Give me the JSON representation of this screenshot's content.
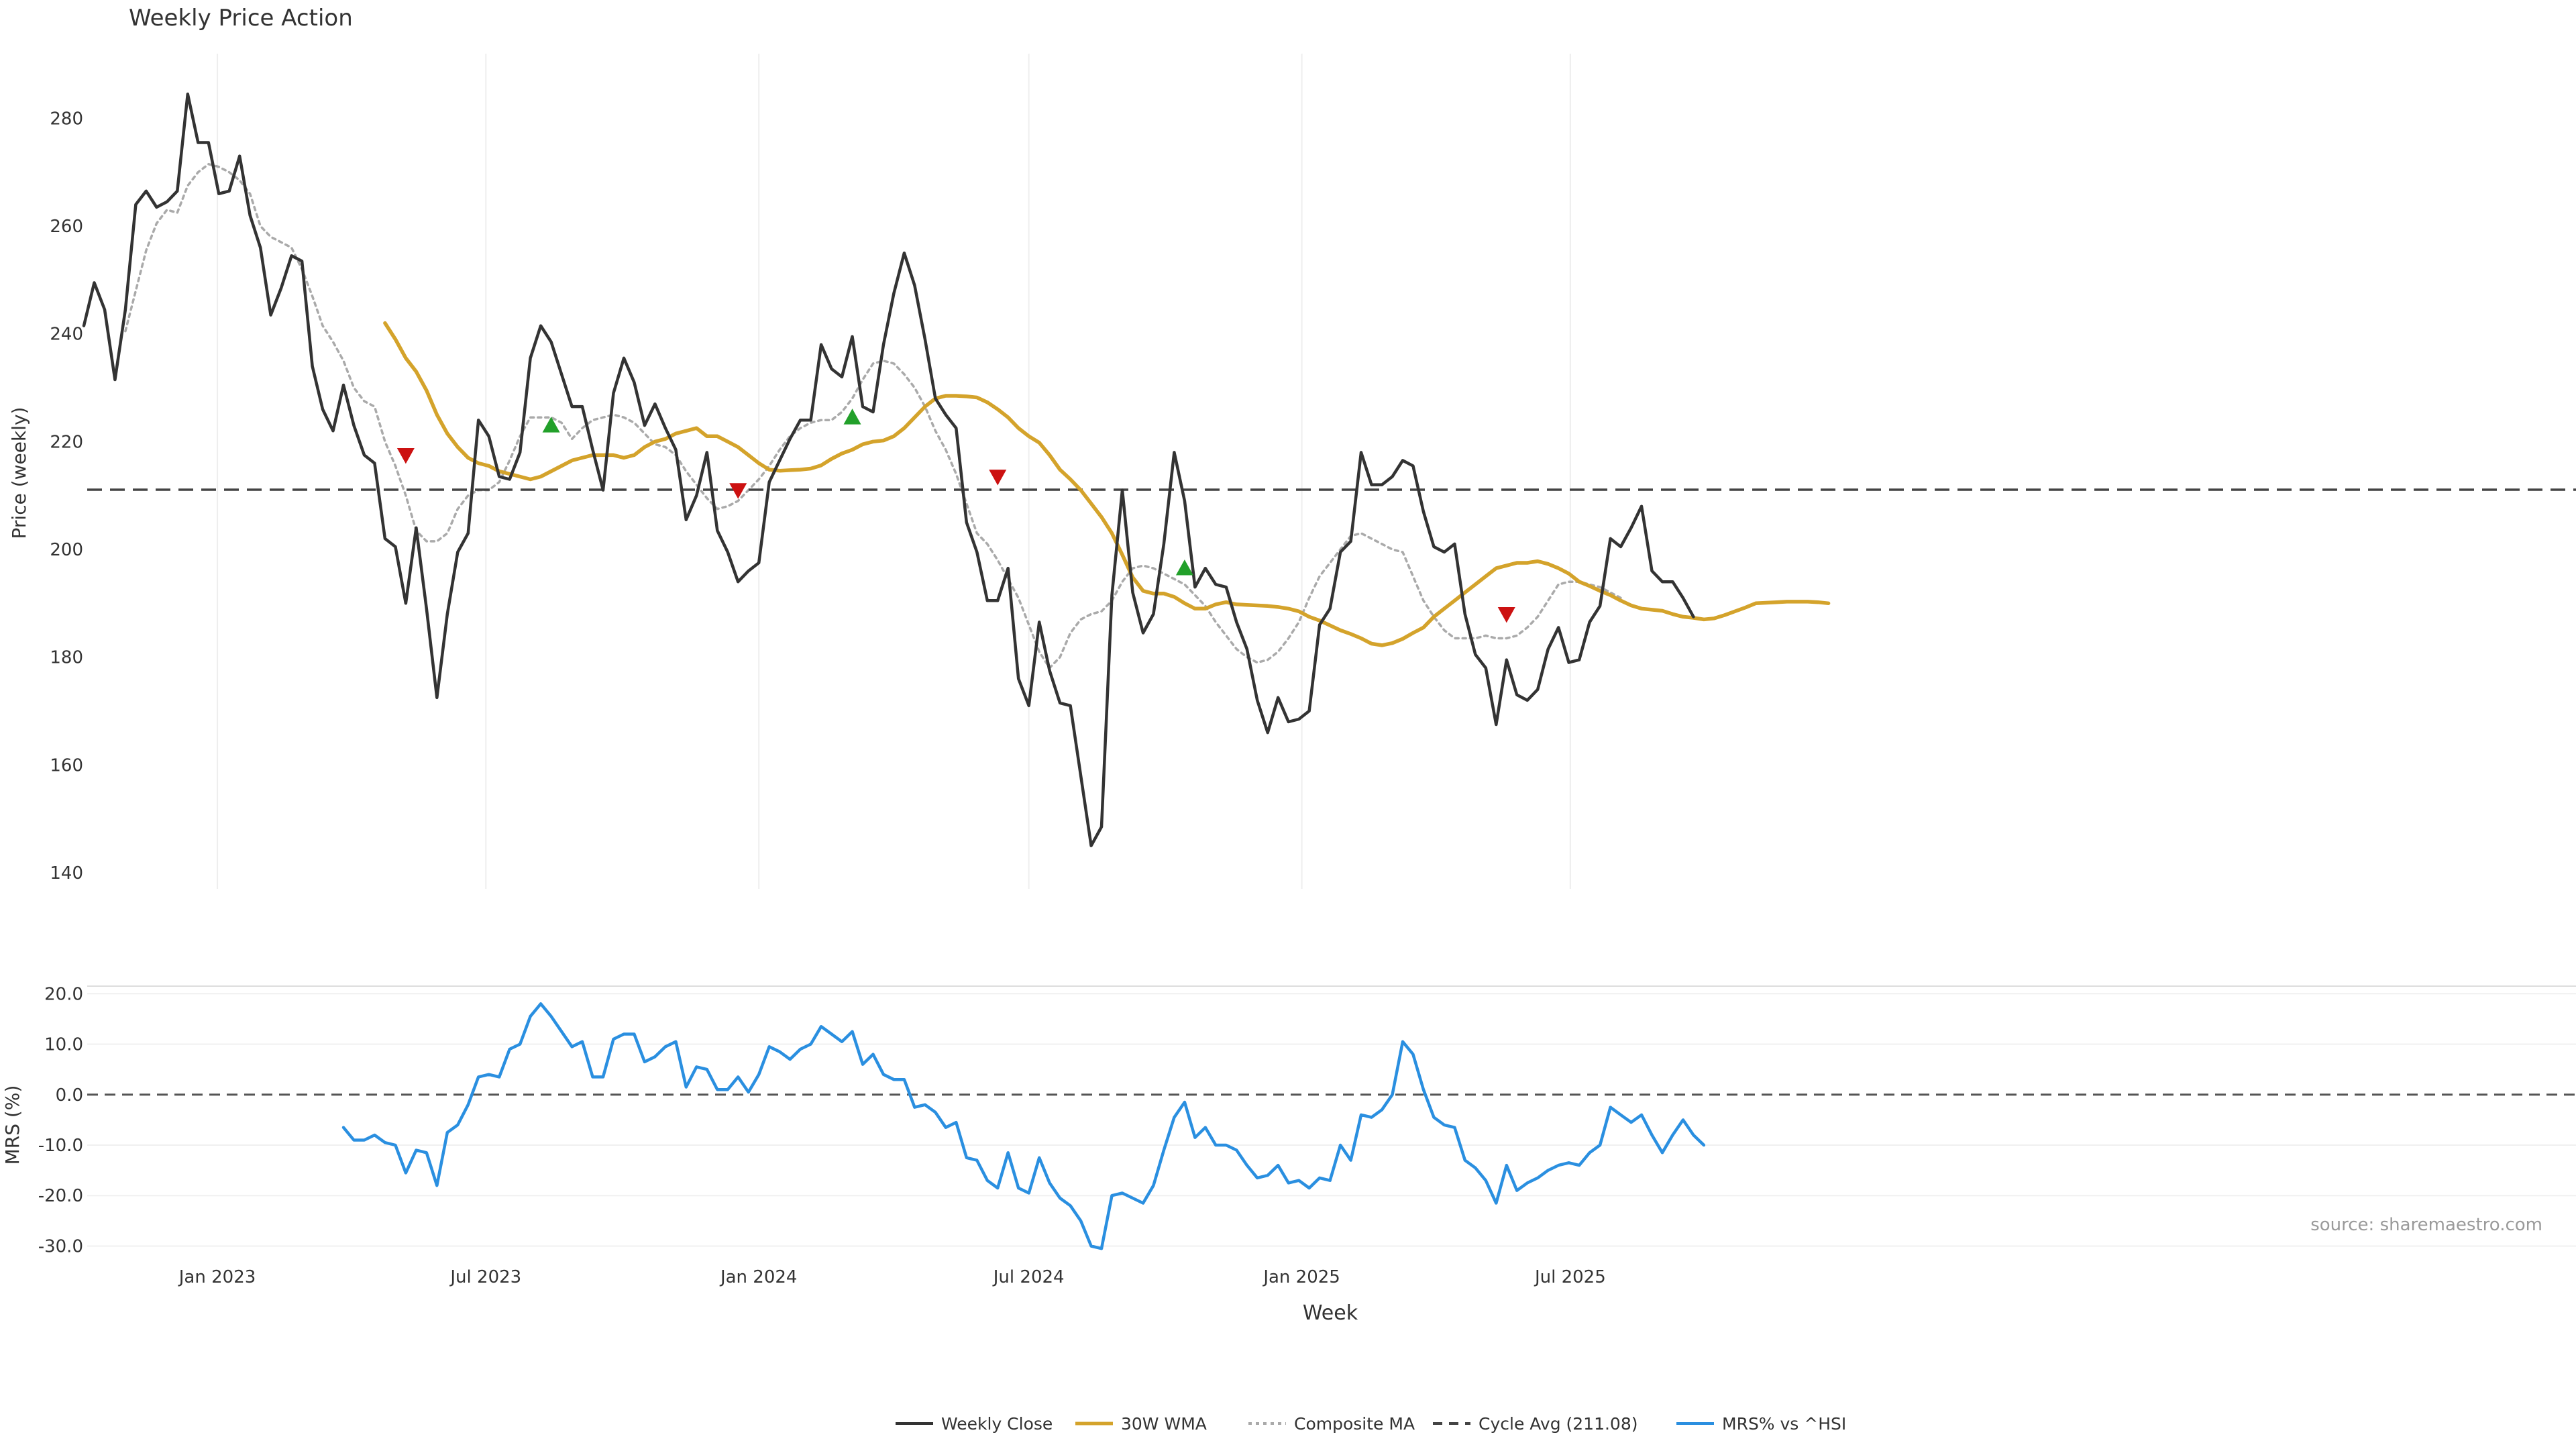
{
  "chart_data": {
    "type": "line",
    "title": "Weekly Price Action",
    "source": "source: sharemaestro.com",
    "x_axis": {
      "label": "Week",
      "start": "2022-10-03",
      "step_days": 7,
      "ticks": [
        {
          "date": "2023-01-01",
          "label": "Jan 2023"
        },
        {
          "date": "2023-07-01",
          "label": "Jul 2023"
        },
        {
          "date": "2024-01-01",
          "label": "Jan 2024"
        },
        {
          "date": "2024-07-01",
          "label": "Jul 2024"
        },
        {
          "date": "2025-01-01",
          "label": "Jan 2025"
        },
        {
          "date": "2025-07-01",
          "label": "Jul 2025"
        }
      ],
      "range": [
        "2022-10-03",
        "2025-10-20"
      ]
    },
    "price_panel": {
      "ylabel": "Price (weekly)",
      "ylim": [
        137,
        292
      ],
      "yticks": [
        140,
        160,
        180,
        200,
        220,
        240,
        260,
        280
      ],
      "series": [
        {
          "name": "Weekly Close",
          "color": "#333333",
          "style": "solid",
          "values": [
            241.5,
            249.5,
            244.5,
            231.5,
            244.5,
            264.0,
            266.5,
            263.5,
            264.5,
            266.5,
            284.5,
            275.5,
            275.5,
            266.0,
            266.5,
            273.0,
            262.0,
            256.0,
            243.5,
            248.5,
            254.5,
            253.5,
            234.0,
            226.0,
            222.0,
            230.5,
            223.0,
            217.5,
            216.0,
            202.0,
            200.5,
            190.0,
            204.0,
            189.0,
            172.5,
            188.0,
            199.5,
            203.0,
            224.0,
            221.0,
            213.5,
            213.0,
            218.0,
            235.5,
            241.5,
            238.5,
            232.5,
            226.5,
            226.5,
            218.5,
            211.0,
            229.0,
            235.5,
            231.0,
            223.0,
            227.0,
            222.5,
            218.5,
            205.5,
            210.0,
            218.0,
            203.5,
            199.5,
            194.0,
            196.0,
            197.5,
            212.5,
            216.5,
            220.5,
            224.0,
            224.0,
            238.0,
            233.5,
            232.0,
            239.5,
            226.5,
            225.5,
            238.0,
            247.5,
            255.0,
            249.0,
            239.0,
            228.0,
            225.0,
            222.5,
            205.0,
            199.5,
            190.5,
            190.5,
            196.5,
            176.0,
            171.0,
            186.5,
            177.5,
            171.5,
            171.0,
            158.0,
            145.0,
            148.5,
            191.5,
            211.0,
            192.0,
            184.5,
            188.0,
            201.0,
            218.0,
            209.0,
            193.0,
            196.5,
            193.5,
            193.0,
            186.5,
            181.5,
            172.0,
            166.0,
            172.5,
            168.0,
            168.5,
            170.0,
            186.0,
            189.0,
            199.5,
            201.5,
            218.0,
            212.0,
            212.0,
            213.5,
            216.5,
            215.5,
            207.0,
            200.5,
            199.5,
            201.0,
            188.0,
            180.5,
            178.0,
            167.5,
            179.5,
            173.0,
            172.0,
            174.0,
            181.5,
            185.5,
            179.0,
            179.5,
            186.5,
            189.5,
            202.0,
            200.5,
            204.0,
            208.0,
            196.0,
            194.0,
            194.0,
            191.0,
            187.5
          ]
        },
        {
          "name": "30W WMA",
          "color": "#D4A32B",
          "style": "solid",
          "start_index": 29,
          "values": [
            242.0,
            239.0,
            235.5,
            233.0,
            229.5,
            225.0,
            221.5,
            219.0,
            217.0,
            216.0,
            215.5,
            214.5,
            214.0,
            213.5,
            213.0,
            213.5,
            214.5,
            215.5,
            216.5,
            217.0,
            217.5,
            217.5,
            217.5,
            217.0,
            217.5,
            219.0,
            220.0,
            220.5,
            221.5,
            222.0,
            222.5,
            221.0,
            221.0,
            220.0,
            219.0,
            217.5,
            216.0,
            214.8,
            214.6,
            214.7,
            214.8,
            215.0,
            215.6,
            216.8,
            217.8,
            218.5,
            219.5,
            220.0,
            220.2,
            221.0,
            222.5,
            224.5,
            226.5,
            228.0,
            228.5,
            228.5,
            228.4,
            228.2,
            227.3,
            226.0,
            224.5,
            222.5,
            221.0,
            219.8,
            217.5,
            214.8,
            213.0,
            211.0,
            208.5,
            206.0,
            203.0,
            199.0,
            194.8,
            192.3,
            191.8,
            191.8,
            191.2,
            190.0,
            189.0,
            189.0,
            189.8,
            190.2,
            189.8,
            189.7,
            189.6,
            189.5,
            189.3,
            189.0,
            188.5,
            187.5,
            186.8,
            185.9,
            185.0,
            184.3,
            183.5,
            182.5,
            182.2,
            182.6,
            183.4,
            184.5,
            185.5,
            187.5,
            189.0,
            190.5,
            192.0,
            193.5,
            195.0,
            196.5,
            197.0,
            197.5,
            197.5,
            197.8,
            197.3,
            196.5,
            195.5,
            194.0,
            193.2,
            192.3,
            191.5,
            190.5,
            189.6,
            189.0,
            188.8,
            188.6,
            188.0,
            187.5,
            187.3,
            187.0,
            187.2,
            187.8,
            188.5,
            189.2,
            190.0,
            190.1,
            190.2,
            190.3,
            190.3,
            190.3,
            190.2,
            190.0
          ]
        },
        {
          "name": "Composite MA",
          "color": "#AAAAAA",
          "style": "dotted",
          "start_index": 4,
          "values": [
            240.5,
            248.0,
            255.5,
            260.5,
            263.0,
            262.5,
            267.5,
            270.0,
            271.5,
            271.0,
            270.0,
            268.5,
            266.0,
            260.0,
            258.0,
            257.0,
            256.0,
            252.0,
            247.0,
            241.5,
            238.5,
            235.0,
            230.0,
            227.5,
            226.5,
            220.0,
            215.5,
            210.0,
            203.5,
            201.5,
            201.5,
            203.0,
            207.5,
            210.0,
            211.0,
            211.0,
            212.5,
            216.5,
            221.0,
            224.5,
            224.5,
            224.5,
            223.5,
            220.5,
            222.5,
            224.0,
            224.5,
            225.0,
            224.5,
            223.5,
            221.5,
            219.5,
            219.0,
            217.5,
            214.5,
            212.0,
            209.5,
            207.5,
            208.0,
            209.0,
            211.0,
            213.0,
            215.5,
            218.5,
            221.0,
            222.5,
            223.5,
            224.0,
            224.0,
            225.5,
            228.0,
            231.5,
            234.5,
            235.0,
            234.5,
            232.5,
            230.0,
            226.5,
            222.0,
            218.5,
            214.0,
            208.5,
            203.0,
            201.0,
            198.0,
            194.5,
            191.0,
            186.0,
            181.0,
            178.0,
            180.0,
            184.5,
            187.0,
            188.0,
            188.5,
            190.5,
            194.0,
            196.5,
            197.0,
            196.5,
            195.5,
            194.5,
            193.5,
            191.5,
            189.5,
            186.5,
            184.0,
            181.5,
            180.0,
            179.0,
            179.5,
            181.0,
            183.5,
            186.5,
            191.0,
            195.0,
            197.5,
            200.0,
            202.5,
            203.0,
            202.0,
            201.0,
            200.0,
            199.5,
            195.0,
            190.5,
            187.5,
            185.0,
            183.5,
            183.5,
            183.5,
            184.0,
            183.5,
            183.5,
            184.0,
            185.5,
            187.5,
            190.5,
            193.5,
            194.0,
            194.0,
            193.5,
            193.0,
            192.0,
            191.0
          ]
        },
        {
          "name": "Cycle Avg (211.08)",
          "color": "#444444",
          "style": "dashed",
          "value": 211.08
        }
      ],
      "markers": [
        {
          "type": "sell",
          "index": 31,
          "y": 217.5,
          "color": "#CC1111"
        },
        {
          "type": "buy",
          "index": 45,
          "y": 223.0,
          "color": "#22A02A"
        },
        {
          "type": "sell",
          "index": 63,
          "y": 211.0,
          "color": "#CC1111"
        },
        {
          "type": "buy",
          "index": 74,
          "y": 224.5,
          "color": "#22A02A"
        },
        {
          "type": "sell",
          "index": 88,
          "y": 213.5,
          "color": "#CC1111"
        },
        {
          "type": "buy",
          "index": 106,
          "y": 196.5,
          "color": "#22A02A"
        },
        {
          "type": "sell",
          "index": 137,
          "y": 188.0,
          "color": "#CC1111"
        }
      ]
    },
    "mrs_panel": {
      "ylabel": "MRS (%)",
      "ylim": [
        -31,
        21.5
      ],
      "yticks": [
        20.0,
        10.0,
        0.0,
        -10.0,
        -20.0,
        -30.0
      ],
      "ytick_labels": [
        "20.0",
        "10.0",
        "0.0",
        "-10.0",
        "-20.0",
        "-30.0"
      ],
      "zero_line": 0,
      "series": [
        {
          "name": "MRS% vs ^HSI",
          "color": "#2A8FE0",
          "style": "solid",
          "start_index": 25,
          "values": [
            -6.5,
            -9.0,
            -9.0,
            -8.0,
            -9.5,
            -10.0,
            -15.5,
            -11.0,
            -11.5,
            -18.0,
            -7.5,
            -6.0,
            -2.0,
            3.5,
            4.0,
            3.5,
            9.0,
            10.0,
            15.5,
            18.0,
            15.5,
            12.5,
            9.5,
            10.5,
            3.5,
            3.5,
            11.0,
            12.0,
            12.0,
            6.5,
            7.5,
            9.5,
            10.5,
            1.5,
            5.5,
            5.0,
            1.0,
            1.0,
            3.5,
            0.5,
            4.0,
            9.5,
            8.5,
            7.0,
            9.0,
            10.0,
            13.5,
            12.0,
            10.5,
            12.5,
            6.0,
            8.0,
            4.0,
            3.0,
            3.0,
            -2.5,
            -2.0,
            -3.5,
            -6.5,
            -5.5,
            -12.5,
            -13.0,
            -17.0,
            -18.5,
            -11.5,
            -18.5,
            -19.5,
            -12.5,
            -17.5,
            -20.5,
            -22.0,
            -25.0,
            -30.0,
            -30.5,
            -20.0,
            -19.5,
            -20.5,
            -21.5,
            -18.0,
            -11.0,
            -4.5,
            -1.5,
            -8.5,
            -6.5,
            -10.0,
            -10.0,
            -11.0,
            -14.0,
            -16.5,
            -16.0,
            -14.0,
            -17.5,
            -17.0,
            -18.5,
            -16.5,
            -17.0,
            -10.0,
            -13.0,
            -4.0,
            -4.5,
            -3.0,
            0.0,
            10.5,
            8.0,
            1.0,
            -4.5,
            -6.0,
            -6.5,
            -13.0,
            -14.5,
            -17.0,
            -21.5,
            -14.0,
            -19.0,
            -17.5,
            -16.5,
            -15.0,
            -14.0,
            -13.5,
            -14.0,
            -11.5,
            -10.0,
            -2.5,
            -4.0,
            -5.5,
            -4.0,
            -8.0,
            -11.5,
            -8.0,
            -5.0,
            -8.0,
            -10.0
          ]
        }
      ]
    },
    "legend": {
      "placement": "bottom-center",
      "entries": [
        "Weekly Close",
        "30W WMA",
        "Composite MA",
        "Cycle Avg (211.08)",
        "MRS% vs ^HSI"
      ]
    },
    "grid": true
  }
}
